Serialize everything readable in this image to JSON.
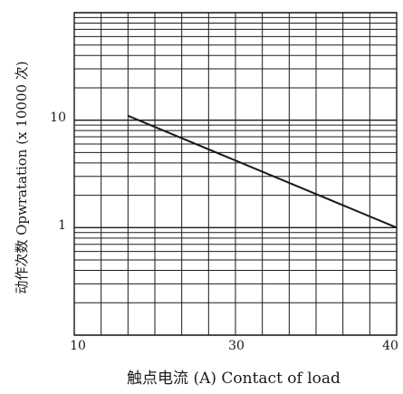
{
  "chart_data": {
    "type": "line",
    "xlabel": "触点电流 (A) Contact of load",
    "ylabel": "动作次数 Opwratation (x 10000 次)",
    "x_ticks": [
      "10",
      "30",
      "40"
    ],
    "y_ticks": [
      "10",
      "1"
    ],
    "xlim": [
      10,
      40
    ],
    "y_scale": "log",
    "ylim": [
      0.1,
      100
    ],
    "grid": true,
    "series": [
      {
        "x": [
          15,
          40
        ],
        "y": [
          11,
          1
        ]
      }
    ]
  },
  "colors": {
    "line": "#1a1a1a",
    "grid": "#1a1a1a"
  }
}
